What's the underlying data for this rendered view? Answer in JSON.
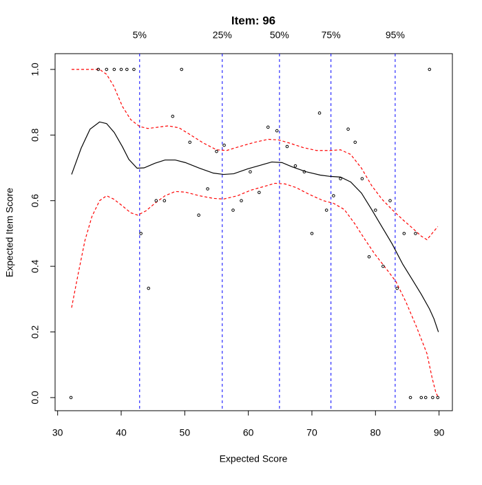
{
  "chart_data": {
    "type": "line",
    "title": "Item:  96",
    "xlabel": "Expected Score",
    "ylabel": "Expected Item Score",
    "xlim": [
      29.6,
      92.1
    ],
    "ylim": [
      -0.04,
      1.048
    ],
    "xticks": [
      30,
      40,
      50,
      60,
      70,
      80,
      90
    ],
    "yticks": [
      {
        "value": 0,
        "label": "0.0"
      },
      {
        "value": 0.2,
        "label": "0.2"
      },
      {
        "value": 0.4,
        "label": "0.4"
      },
      {
        "value": 0.6,
        "label": "0.6"
      },
      {
        "value": 0.8,
        "label": "0.8"
      },
      {
        "value": 1,
        "label": "1.0"
      }
    ],
    "percentiles": {
      "labels": [
        "5%",
        "25%",
        "50%",
        "75%",
        "95%"
      ],
      "values": [
        42.9,
        55.9,
        64.9,
        73.0,
        83.1
      ],
      "color": "#0000ff"
    },
    "points": {
      "color": "#000000",
      "x": [
        32.1,
        36.4,
        37.7,
        38.9,
        40.0,
        40.9,
        42.0,
        43.1,
        44.3,
        45.5,
        46.8,
        48.1,
        49.5,
        50.8,
        52.2,
        53.6,
        55.0,
        56.2,
        57.6,
        58.9,
        60.3,
        61.7,
        63.1,
        64.5,
        66.1,
        67.4,
        68.8,
        70.0,
        71.2,
        72.3,
        73.4,
        74.5,
        75.7,
        76.8,
        77.9,
        79.0,
        80.0,
        81.2,
        82.3,
        83.4,
        84.5,
        85.5,
        86.3,
        87.2,
        87.9,
        88.5,
        89.0,
        89.8
      ],
      "y": [
        0,
        1,
        1,
        1,
        1,
        1,
        1,
        0.5,
        0.333,
        0.6,
        0.6,
        0.857,
        1,
        0.778,
        0.556,
        0.636,
        0.75,
        0.769,
        0.571,
        0.6,
        0.688,
        0.625,
        0.824,
        0.813,
        0.765,
        0.706,
        0.688,
        0.5,
        0.867,
        0.571,
        0.615,
        0.667,
        0.818,
        0.778,
        0.667,
        0.429,
        0.571,
        0.4,
        0.6,
        0.333,
        0.5,
        0,
        0.5,
        0,
        0,
        1,
        0,
        0
      ]
    },
    "curve": {
      "color": "#000000",
      "x": [
        32.2,
        33.7,
        35.1,
        36.6,
        37.7,
        38.9,
        40.2,
        41.2,
        42.5,
        43.6,
        45.3,
        46.9,
        48.5,
        50.1,
        52.3,
        54.5,
        56.1,
        57.7,
        59.9,
        62.1,
        63.7,
        65.3,
        66.9,
        69.1,
        71.3,
        72.9,
        74.5,
        76.1,
        77.8,
        79.4,
        81.0,
        82.6,
        84.3,
        85.9,
        87.2,
        88.5,
        89.2,
        89.9
      ],
      "y": [
        0.68,
        0.76,
        0.818,
        0.84,
        0.835,
        0.808,
        0.764,
        0.726,
        0.699,
        0.7,
        0.714,
        0.724,
        0.724,
        0.716,
        0.699,
        0.684,
        0.68,
        0.682,
        0.697,
        0.709,
        0.718,
        0.716,
        0.703,
        0.688,
        0.678,
        0.674,
        0.672,
        0.657,
        0.623,
        0.573,
        0.521,
        0.469,
        0.406,
        0.356,
        0.315,
        0.27,
        0.24,
        0.2
      ]
    },
    "upper": {
      "color": "#ff0000",
      "x": [
        32.2,
        36.6,
        37.7,
        38.8,
        40.2,
        41.5,
        42.9,
        44.2,
        45.8,
        47.4,
        49.1,
        50.7,
        52.9,
        55.0,
        56.6,
        58.8,
        61.0,
        63.1,
        64.8,
        66.4,
        68.6,
        70.7,
        72.9,
        74.5,
        76.1,
        77.8,
        79.4,
        81.0,
        82.6,
        84.3,
        85.9,
        87.2,
        88.1,
        88.9,
        89.8
      ],
      "y": [
        1,
        1,
        0.985,
        0.95,
        0.887,
        0.847,
        0.826,
        0.82,
        0.824,
        0.828,
        0.822,
        0.803,
        0.776,
        0.755,
        0.753,
        0.766,
        0.778,
        0.787,
        0.785,
        0.776,
        0.762,
        0.753,
        0.753,
        0.755,
        0.741,
        0.699,
        0.646,
        0.605,
        0.573,
        0.542,
        0.515,
        0.492,
        0.481,
        0.5,
        0.521
      ]
    },
    "lower": {
      "color": "#ff0000",
      "x": [
        32.2,
        33.2,
        34.3,
        35.4,
        36.6,
        37.7,
        38.8,
        40.2,
        41.5,
        42.6,
        43.9,
        45.3,
        46.9,
        48.5,
        50.1,
        52.3,
        54.5,
        56.1,
        58.3,
        60.4,
        62.6,
        64.2,
        65.8,
        67.5,
        69.6,
        71.8,
        73.4,
        75.1,
        76.7,
        78.3,
        79.9,
        81.6,
        83.2,
        84.8,
        86.4,
        88.1,
        88.9,
        89.5,
        89.9
      ],
      "y": [
        0.274,
        0.374,
        0.479,
        0.552,
        0.6,
        0.615,
        0.605,
        0.584,
        0.563,
        0.556,
        0.569,
        0.592,
        0.615,
        0.628,
        0.626,
        0.615,
        0.607,
        0.605,
        0.615,
        0.632,
        0.644,
        0.653,
        0.651,
        0.64,
        0.619,
        0.6,
        0.592,
        0.573,
        0.531,
        0.483,
        0.437,
        0.395,
        0.354,
        0.291,
        0.218,
        0.134,
        0.061,
        0.015,
        0
      ]
    }
  }
}
